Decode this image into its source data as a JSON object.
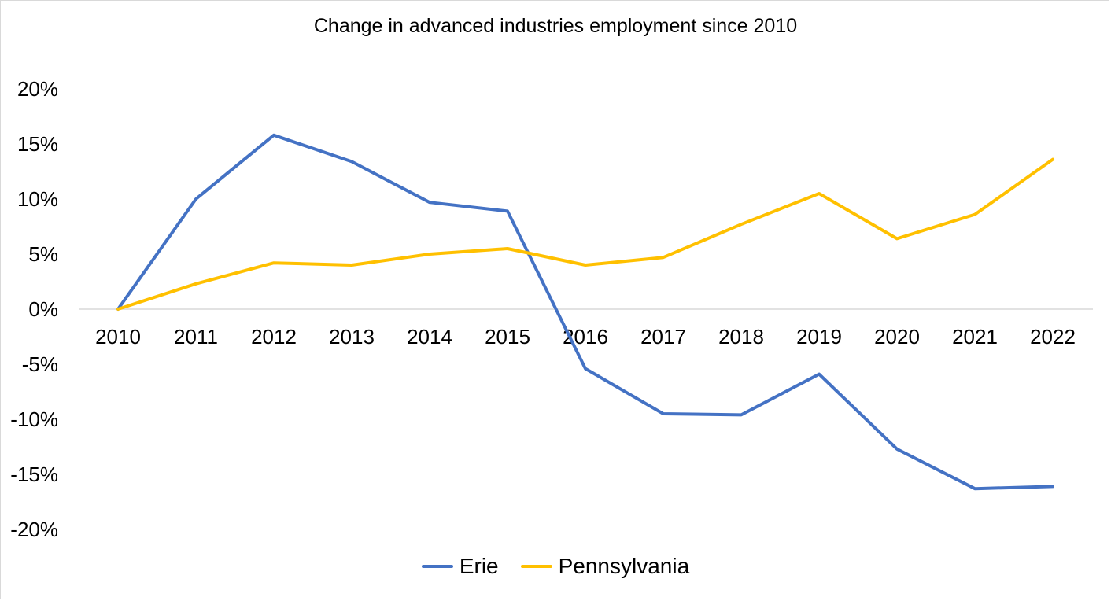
{
  "chart_data": {
    "type": "line",
    "title": "Change in advanced industries employment since 2010",
    "xlabel": "",
    "ylabel": "",
    "categories": [
      "2010",
      "2011",
      "2012",
      "2013",
      "2014",
      "2015",
      "2016",
      "2017",
      "2018",
      "2019",
      "2020",
      "2021",
      "2022"
    ],
    "series": [
      {
        "name": "Erie",
        "color": "#4472C4",
        "values": [
          0,
          10.0,
          15.8,
          13.4,
          9.7,
          8.9,
          -5.4,
          -9.5,
          -9.6,
          -5.9,
          -12.7,
          -16.3,
          -16.1
        ]
      },
      {
        "name": "Pennsylvania",
        "color": "#FFC000",
        "values": [
          0,
          2.3,
          4.2,
          4.0,
          5.0,
          5.5,
          4.0,
          4.7,
          7.7,
          10.5,
          6.4,
          8.6,
          13.6
        ]
      }
    ],
    "ylim": [
      -20,
      20
    ],
    "yticks": [
      -20,
      -15,
      -10,
      -5,
      0,
      5,
      10,
      15,
      20
    ],
    "ytick_labels": [
      "-20%",
      "-15%",
      "-10%",
      "-5%",
      "0%",
      "5%",
      "10%",
      "15%",
      "20%"
    ],
    "grid": false,
    "legend_position": "bottom"
  }
}
